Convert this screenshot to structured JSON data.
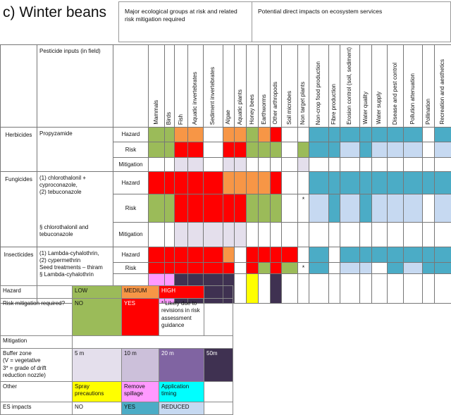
{
  "title": "c) Winter beans",
  "header": {
    "eco_groups": "Major ecological groups at risk and related risk mitigation required",
    "es_impacts": "Potential direct impacts on ecosystem services"
  },
  "pesticide_inputs_label": "Pesticide inputs (in field)",
  "columns": [
    "Mammals",
    "Birds",
    "Fish",
    "Aquatic invertebrates",
    "Sediment invertebrates",
    "Algae",
    "Aquatic plants",
    "Honey bees",
    "Earthworms",
    "Other arthropods",
    "Soil microbes",
    "Non target plants",
    "Non-crop food production",
    "Fibre production",
    "Erosion control (soil, sediment)",
    "Water quality",
    "Water supply",
    "Disease and pest control",
    "Pollution attenuation",
    "Pollination",
    "Recreation and aesthetics"
  ],
  "colors": {
    "G": "#9bbb59",
    "O": "#f79646",
    "R": "#ff0000",
    "W": "#ffffff",
    "L": "#e4dfec",
    "T": "#4bacc6",
    "B": "#c6d9f1",
    "P": "#ff99ff",
    "D": "#3f3151",
    "Y": "#ffff00",
    "L2": "#ccc0da",
    "M": "#8064a2",
    "C": "#00ffff"
  },
  "groups": [
    {
      "category": "Herbicides",
      "inputs": "Propyzamide",
      "rows": [
        {
          "label": "Hazard",
          "cells": "GGOOWOOGORWWTTTTTTTWT",
          "asterisk": ""
        },
        {
          "label": "Risk",
          "cells": "GGRRWRRGGGWGTTBTBBBWB",
          "asterisk": ""
        },
        {
          "label": "Mitigation",
          "cells": "WWLLWLLWWWWLWWWWWWWWW",
          "asterisk": ""
        }
      ]
    },
    {
      "category": "Fungicides",
      "inputs": "(1)  chlorothalonil + cyproconazole,\n(2)  tebuconazole\n\n\n\n\n§ chlorothalonil and tebuconazole",
      "rows": [
        {
          "label": "Hazard",
          "cells": "RRRRROOOORWWTTTTTTTTT",
          "asterisk": ""
        },
        {
          "label": "Risk",
          "cells": "GGRRRRRGGGWWBTBTBBBWB",
          "asterisk": "*"
        },
        {
          "label": "Mitigation",
          "cells": "WWLLLLLWWWWWWWWWWWWWW",
          "asterisk": ""
        }
      ]
    },
    {
      "category": "Insecticides",
      "inputs": "(1) Lambda-cyhalothrin,\n(2) cypermethrin\nSeed treatments – thiram\n§  Lambda-cyhalothrin",
      "rows": [
        {
          "label": "Hazard",
          "cells": "RRRRROWRRRRWTWTTTTTTT",
          "asterisk": ""
        },
        {
          "label": "Risk",
          "cells": "RRRRRRWRGRGWTWBBWTBTT",
          "asterisk": "*"
        },
        {
          "label": "Mitigation",
          "cells": "PPDDDDWYWDWWWWWWWWWWW",
          "asterisk": ""
        }
      ]
    }
  ],
  "legend": {
    "hazard": {
      "label": "Hazard",
      "low": "LOW",
      "medium": "MEDIUM",
      "high": "HIGH"
    },
    "risk": {
      "label": "Risk mitigation required?",
      "no": "NO",
      "yes": "YES",
      "note": "* Likely due to revisions in risk assessment guidance"
    },
    "mitigation": {
      "label": "Mitigation"
    },
    "buffer": {
      "label": "Buffer zone\n(V = vegetative\n3* = grade of drift reduction nozzle)",
      "b5": "5 m",
      "b10": "10 m",
      "b20": "20 m",
      "b50": "50m"
    },
    "other": {
      "label": "Other",
      "spray": "Spray precautions",
      "spillage": "Remove spillage",
      "timing": "Application timing"
    },
    "es": {
      "label": "ES impacts",
      "no": "NO",
      "yes": "YES",
      "reduced": "REDUCED"
    }
  }
}
